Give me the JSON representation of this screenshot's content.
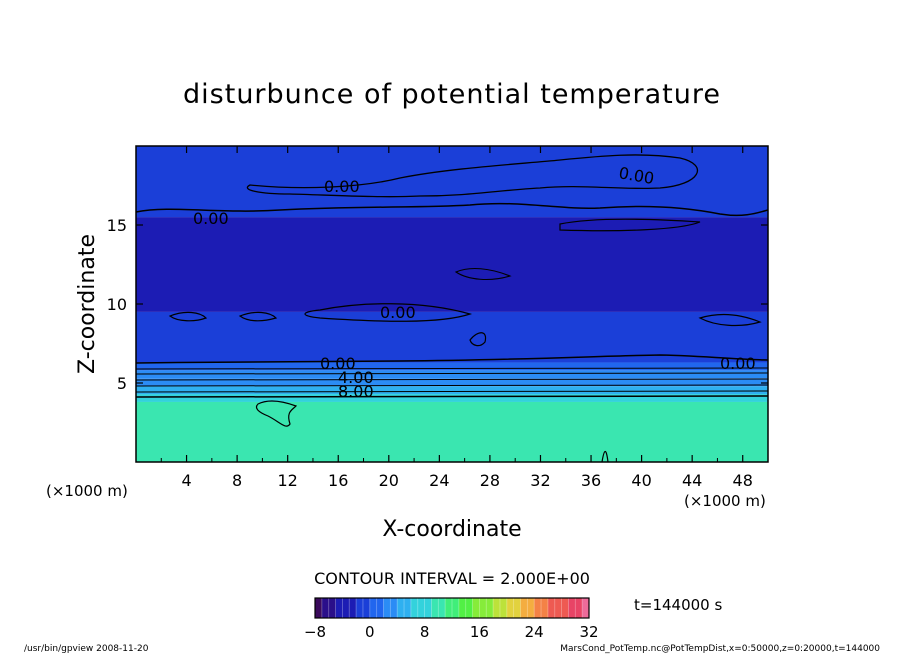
{
  "chart_data": {
    "type": "heatmap",
    "title": "disturbunce of potential temperature",
    "xlabel": "X-coordinate",
    "ylabel": "Z-coordinate",
    "x_unit_left": "(×1000 m)",
    "x_unit_right": "(×1000 m)",
    "xlim": [
      0,
      50
    ],
    "ylim": [
      0,
      20
    ],
    "x_ticks": [
      "4",
      "8",
      "12",
      "16",
      "20",
      "24",
      "28",
      "32",
      "36",
      "40",
      "44",
      "48"
    ],
    "y_ticks": [
      "5",
      "10",
      "15"
    ],
    "contour_interval_label": "CONTOUR INTERVAL = 2.000E+00",
    "time_label": "t=144000 s",
    "colorbar": {
      "min": -8,
      "max": 32,
      "tick_labels": [
        "−8",
        "0",
        "8",
        "16",
        "24",
        "32"
      ],
      "colors": [
        "#3a0a5c",
        "#2a0f8a",
        "#1c1cb4",
        "#1b3fd8",
        "#2166ee",
        "#2b8cf5",
        "#2fb0f0",
        "#33d2dc",
        "#3ae6b0",
        "#40ee7a",
        "#52f045",
        "#86ec3a",
        "#bce23a",
        "#e2d23e",
        "#f4ad40",
        "#f48246",
        "#ee5a52",
        "#e84466",
        "#ec6b9a"
      ]
    },
    "contour_labels": [
      "0.00",
      "0.00",
      "0.00",
      "0.00",
      "0.00",
      "0.00",
      "4.00",
      "8.00"
    ],
    "field_bands": [
      {
        "z_from": 0,
        "z_to": 3.8,
        "value": 10
      },
      {
        "z_from": 3.8,
        "z_to": 4.3,
        "value": 8
      },
      {
        "z_from": 4.3,
        "z_to": 4.8,
        "value": 6
      },
      {
        "z_from": 4.8,
        "z_to": 5.3,
        "value": 4
      },
      {
        "z_from": 5.3,
        "z_to": 5.8,
        "value": 2
      },
      {
        "z_from": 5.8,
        "z_to": 6.3,
        "value": 0
      },
      {
        "z_from": 6.3,
        "z_to": 9.5,
        "value": -2
      },
      {
        "z_from": 9.5,
        "z_to": 15.5,
        "value": -4
      },
      {
        "z_from": 15.5,
        "z_to": 20,
        "value": -2
      }
    ]
  },
  "footer": {
    "left": "/usr/bin/gpview   2008-11-20",
    "right": "MarsCond_PotTemp.nc@PotTempDist,x=0:50000,z=0:20000,t=144000"
  }
}
